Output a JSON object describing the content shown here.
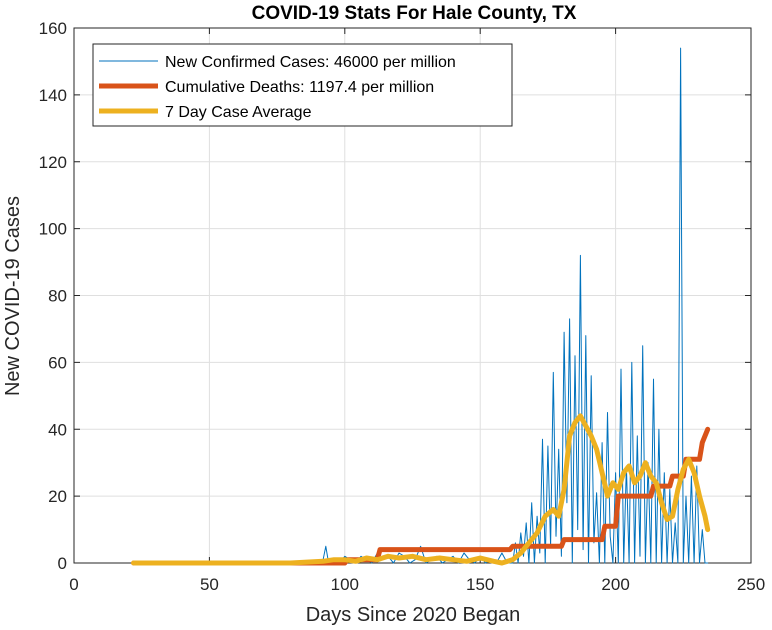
{
  "chart_data": {
    "type": "line",
    "title": "COVID-19 Stats For Hale County, TX",
    "xlabel": "Days Since 2020 Began",
    "ylabel": "New COVID-19 Cases",
    "xlim": [
      0,
      250
    ],
    "ylim": [
      0,
      160
    ],
    "xticks": [
      0,
      50,
      100,
      150,
      200,
      250
    ],
    "yticks": [
      0,
      20,
      40,
      60,
      80,
      100,
      120,
      140,
      160
    ],
    "grid": true,
    "legend_position": "top-left",
    "series": [
      {
        "name": "New Confirmed Cases: 46000 per million",
        "color": "#0072BD",
        "x": [
          22,
          90,
          92,
          93,
          94,
          95,
          96,
          98,
          100,
          102,
          104,
          106,
          108,
          110,
          112,
          114,
          116,
          118,
          120,
          122,
          124,
          126,
          128,
          130,
          132,
          134,
          136,
          138,
          140,
          142,
          144,
          146,
          148,
          150,
          152,
          154,
          156,
          158,
          160,
          162,
          163,
          164,
          165,
          166,
          167,
          168,
          169,
          170,
          171,
          172,
          173,
          174,
          175,
          176,
          177,
          178,
          179,
          180,
          181,
          182,
          183,
          184,
          185,
          186,
          187,
          188,
          189,
          190,
          191,
          192,
          193,
          194,
          195,
          196,
          197,
          198,
          199,
          200,
          201,
          202,
          203,
          204,
          205,
          206,
          207,
          208,
          209,
          210,
          211,
          212,
          213,
          214,
          215,
          216,
          217,
          218,
          219,
          220,
          221,
          222,
          223,
          224,
          225,
          226,
          227,
          228,
          229,
          230,
          231,
          232,
          233,
          234
        ],
        "values": [
          0,
          0,
          1,
          5,
          0,
          0,
          1,
          0,
          2,
          1,
          0,
          2,
          1,
          0,
          3,
          1,
          2,
          0,
          3,
          2,
          0,
          1,
          5,
          0,
          1,
          2,
          0,
          1,
          2,
          0,
          3,
          1,
          0,
          2,
          0,
          1,
          0,
          3,
          0,
          0,
          6,
          0,
          9,
          2,
          12,
          0,
          18,
          0,
          14,
          3,
          37,
          0,
          35,
          5,
          57,
          8,
          34,
          2,
          69,
          18,
          73,
          0,
          62,
          10,
          92,
          4,
          68,
          0,
          56,
          6,
          21,
          0,
          36,
          0,
          45,
          8,
          0,
          27,
          0,
          58,
          0,
          29,
          0,
          60,
          0,
          38,
          2,
          65,
          0,
          30,
          0,
          55,
          0,
          40,
          0,
          27,
          0,
          22,
          0,
          12,
          0,
          154,
          0,
          20,
          0,
          26,
          0,
          29,
          0,
          10,
          0,
          0
        ]
      },
      {
        "name": "Cumulative Deaths: 1197.4 per million",
        "color": "#D95319",
        "x": [
          22,
          100,
          101,
          112,
          113,
          161,
          162,
          180,
          181,
          195,
          196,
          200,
          201,
          213,
          214,
          220,
          221,
          225,
          226,
          231,
          232,
          233,
          234
        ],
        "values": [
          0,
          0,
          1,
          1,
          4,
          4,
          5,
          5,
          7,
          7,
          11,
          11,
          20,
          20,
          23,
          23,
          26,
          26,
          31,
          31,
          36,
          38,
          40
        ]
      },
      {
        "name": "7 Day Case Average",
        "color": "#EDB120",
        "x": [
          22,
          80,
          92,
          96,
          100,
          104,
          108,
          112,
          116,
          120,
          125,
          130,
          135,
          140,
          145,
          150,
          155,
          158,
          162,
          165,
          168,
          171,
          174,
          177,
          179,
          181,
          183,
          185,
          187,
          189,
          191,
          193,
          195,
          197,
          199,
          201,
          203,
          205,
          207,
          209,
          211,
          213,
          215,
          217,
          219,
          221,
          223,
          225,
          227,
          229,
          231,
          233,
          234
        ],
        "values": [
          0,
          0,
          0.5,
          1,
          1,
          0.5,
          1.5,
          1,
          2,
          1.5,
          2,
          1,
          1.5,
          1,
          0.5,
          1.5,
          0.5,
          0,
          1,
          3,
          6,
          9,
          14,
          16,
          14,
          22,
          38,
          42,
          44,
          41,
          38,
          34,
          27,
          20,
          24,
          22,
          27,
          29,
          24,
          26,
          30,
          26,
          24,
          18,
          13,
          14,
          22,
          28,
          31,
          27,
          20,
          14,
          10
        ]
      }
    ]
  }
}
